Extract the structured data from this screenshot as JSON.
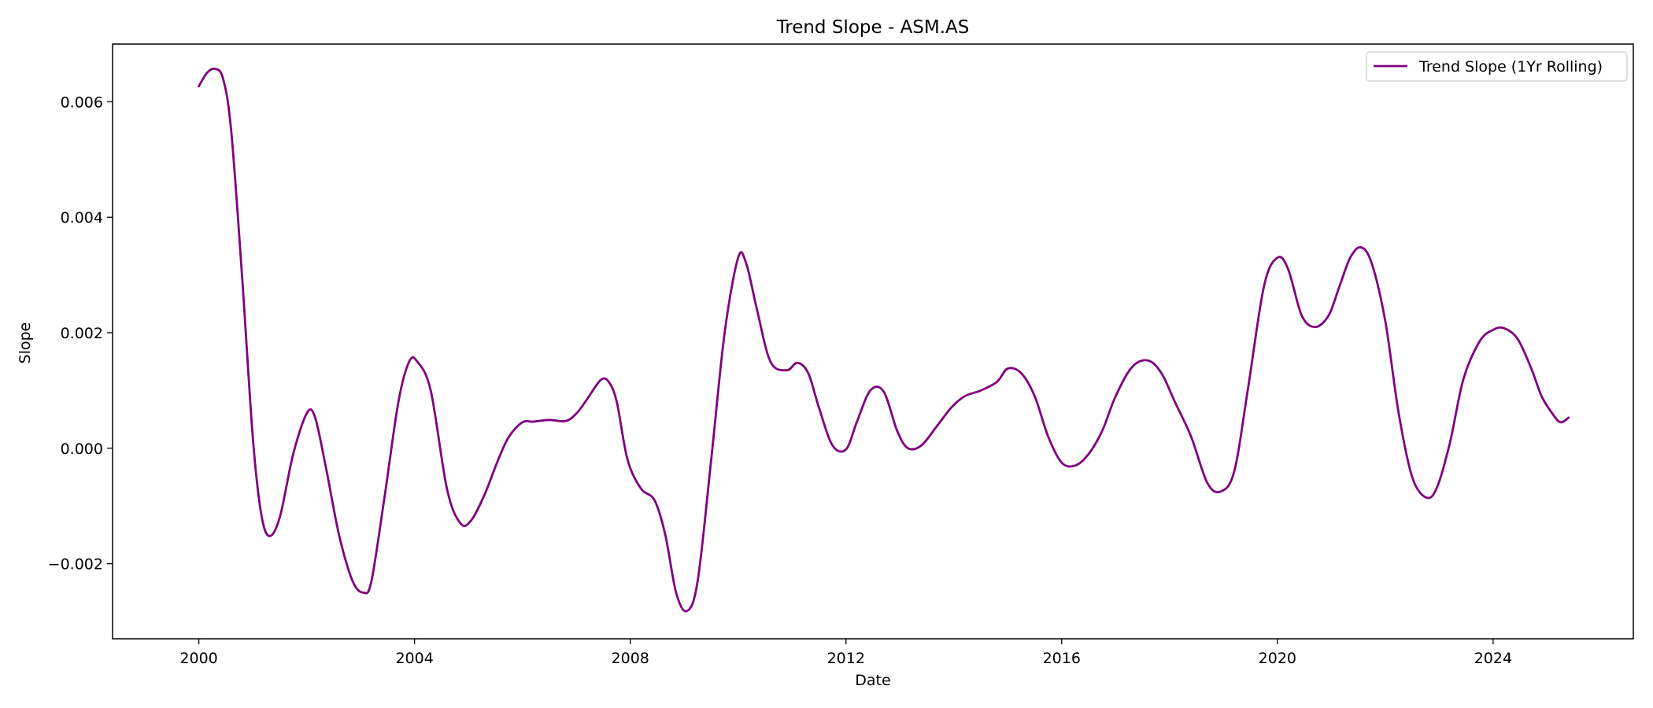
{
  "chart_data": {
    "type": "line",
    "title": "Trend Slope - ASM.AS",
    "xlabel": "Date",
    "ylabel": "Slope",
    "xlim": [
      1998.4,
      2026.6
    ],
    "ylim": [
      -0.0033,
      0.007
    ],
    "grid": false,
    "legend_position": "top-right",
    "x_ticks": [
      2000,
      2004,
      2008,
      2012,
      2016,
      2020,
      2024
    ],
    "x_tick_labels": [
      "2000",
      "2004",
      "2008",
      "2012",
      "2016",
      "2020",
      "2024"
    ],
    "y_ticks": [
      -0.002,
      0.0,
      0.002,
      0.004,
      0.006
    ],
    "y_tick_labels": [
      "−0.002",
      "0.000",
      "0.002",
      "0.004",
      "0.006"
    ],
    "series": [
      {
        "name": "Trend Slope (1Yr Rolling)",
        "color": "#800080",
        "x": [
          2000.0,
          2000.15,
          2000.3,
          2000.45,
          2000.6,
          2000.8,
          2001.0,
          2001.15,
          2001.3,
          2001.5,
          2001.75,
          2002.0,
          2002.15,
          2002.35,
          2002.6,
          2002.85,
          2003.05,
          2003.2,
          2003.45,
          2003.7,
          2003.9,
          2004.05,
          2004.3,
          2004.6,
          2004.85,
          2005.05,
          2005.3,
          2005.55,
          2005.75,
          2006.0,
          2006.2,
          2006.5,
          2006.8,
          2007.0,
          2007.2,
          2007.45,
          2007.6,
          2007.75,
          2007.95,
          2008.2,
          2008.45,
          2008.65,
          2008.85,
          2009.05,
          2009.25,
          2009.5,
          2009.75,
          2010.0,
          2010.15,
          2010.35,
          2010.6,
          2010.9,
          2011.1,
          2011.3,
          2011.5,
          2011.75,
          2012.0,
          2012.2,
          2012.45,
          2012.7,
          2012.95,
          2013.15,
          2013.4,
          2013.7,
          2013.95,
          2014.2,
          2014.5,
          2014.8,
          2015.0,
          2015.25,
          2015.5,
          2015.75,
          2016.0,
          2016.25,
          2016.5,
          2016.75,
          2017.0,
          2017.3,
          2017.6,
          2017.85,
          2018.1,
          2018.4,
          2018.7,
          2018.95,
          2019.2,
          2019.45,
          2019.75,
          2020.0,
          2020.2,
          2020.45,
          2020.7,
          2020.95,
          2021.15,
          2021.35,
          2021.55,
          2021.75,
          2022.0,
          2022.25,
          2022.5,
          2022.75,
          2022.95,
          2023.2,
          2023.45,
          2023.75,
          2024.0,
          2024.2,
          2024.45,
          2024.7,
          2024.9,
          2025.1,
          2025.25,
          2025.4
        ],
        "y": [
          0.00627,
          0.0065,
          0.00657,
          0.0064,
          0.0055,
          0.003,
          0.0002,
          -0.0011,
          -0.00152,
          -0.0012,
          -0.0001,
          0.0006,
          0.00055,
          -0.0003,
          -0.0015,
          -0.0023,
          -0.0025,
          -0.0023,
          -0.0008,
          0.0008,
          0.0015,
          0.0015,
          0.001,
          -0.0007,
          -0.0013,
          -0.00125,
          -0.0008,
          -0.0002,
          0.0002,
          0.00045,
          0.00046,
          0.00049,
          0.00047,
          0.0006,
          0.00085,
          0.00118,
          0.00115,
          0.0008,
          -0.0002,
          -0.0007,
          -0.0009,
          -0.0015,
          -0.0025,
          -0.00282,
          -0.0023,
          -0.0002,
          0.002,
          0.0033,
          0.0032,
          0.0024,
          0.0015,
          0.00135,
          0.00148,
          0.0013,
          0.0007,
          5e-05,
          -2e-05,
          0.00045,
          0.001,
          0.00098,
          0.0003,
          0.0,
          5e-05,
          0.0004,
          0.0007,
          0.0009,
          0.001,
          0.00115,
          0.00138,
          0.0013,
          0.0009,
          0.0002,
          -0.00025,
          -0.0003,
          -0.0001,
          0.0003,
          0.0009,
          0.0014,
          0.00152,
          0.0013,
          0.0008,
          0.0002,
          -0.0006,
          -0.00075,
          -0.0004,
          0.001,
          0.0028,
          0.0033,
          0.0031,
          0.0023,
          0.0021,
          0.0023,
          0.0028,
          0.0033,
          0.00348,
          0.0032,
          0.0022,
          0.0006,
          -0.0005,
          -0.00085,
          -0.0007,
          0.0001,
          0.0012,
          0.00185,
          0.00205,
          0.00208,
          0.0019,
          0.0014,
          0.0009,
          0.0006,
          0.00045,
          0.00053
        ]
      }
    ]
  }
}
